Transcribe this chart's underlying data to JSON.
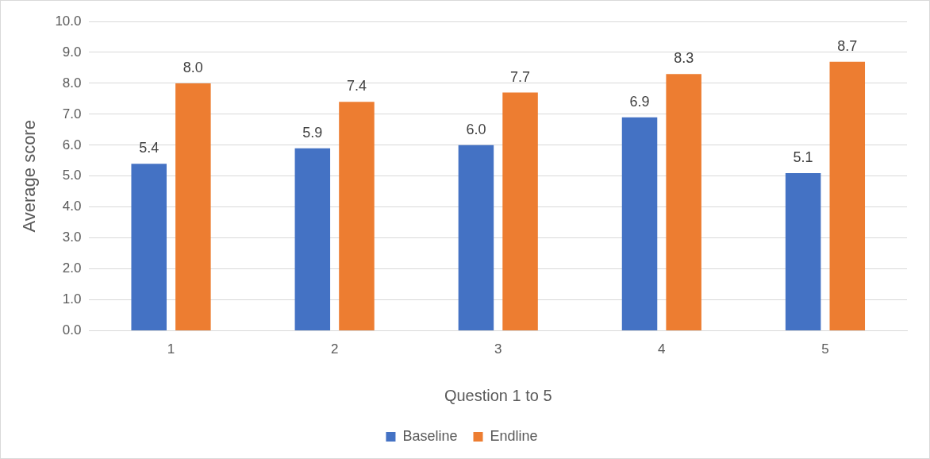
{
  "chart_data": {
    "type": "bar",
    "xlabel": "Question 1 to 5",
    "ylabel": "Average score",
    "categories": [
      "1",
      "2",
      "3",
      "4",
      "5"
    ],
    "series": [
      {
        "name": "Baseline",
        "color": "#4472c4",
        "values": [
          5.4,
          5.9,
          6.0,
          6.9,
          5.1
        ],
        "value_labels": [
          "5.4",
          "5.9",
          "6.0",
          "6.9",
          "5.1"
        ]
      },
      {
        "name": "Endline",
        "color": "#ed7d31",
        "values": [
          8.0,
          7.4,
          7.7,
          8.3,
          8.7
        ],
        "value_labels": [
          "8.0",
          "7.4",
          "7.7",
          "8.3",
          "8.7"
        ]
      }
    ],
    "ylim": [
      0,
      10
    ],
    "yticks": [
      {
        "value": 0,
        "label": "0.0"
      },
      {
        "value": 1,
        "label": "1.0"
      },
      {
        "value": 2,
        "label": "2.0"
      },
      {
        "value": 3,
        "label": "3.0"
      },
      {
        "value": 4,
        "label": "4.0"
      },
      {
        "value": 5,
        "label": "5.0"
      },
      {
        "value": 6,
        "label": "6.0"
      },
      {
        "value": 7,
        "label": "7.0"
      },
      {
        "value": 8,
        "label": "8.0"
      },
      {
        "value": 9,
        "label": "9.0"
      },
      {
        "value": 10,
        "label": "10.0"
      }
    ],
    "grid": "y",
    "legend": "bottom"
  }
}
